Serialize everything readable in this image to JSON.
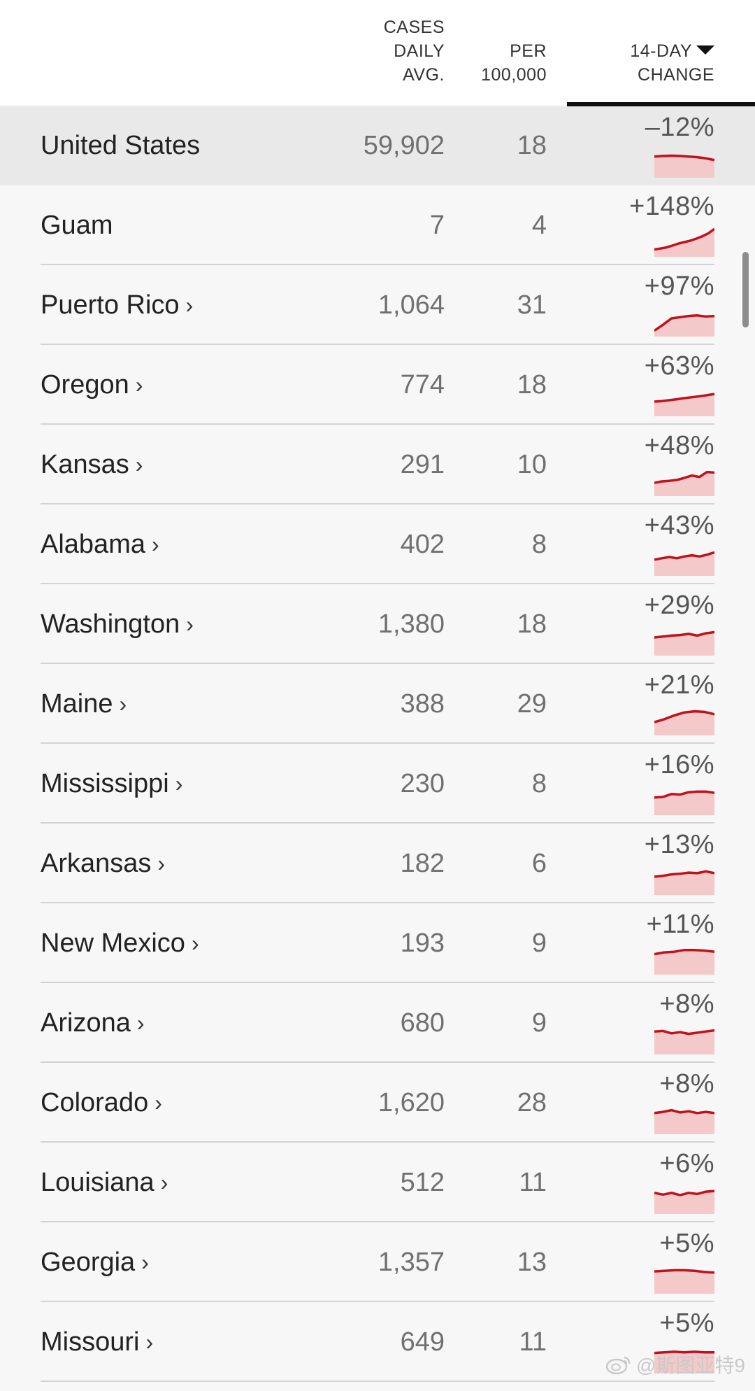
{
  "header": {
    "cases_line1": "CASES",
    "cases_line2": "DAILY",
    "cases_line3": "AVG.",
    "per_line1": "PER",
    "per_line2": "100,000",
    "change_line1": "14-DAY",
    "change_line2": "CHANGE",
    "sort_icon": "caret-down-icon"
  },
  "rows": [
    {
      "name": "United States",
      "link": false,
      "cases": "59,902",
      "per": "18",
      "change": "–12%",
      "trend": [
        0.72,
        0.74,
        0.75,
        0.74,
        0.72,
        0.7,
        0.66,
        0.6
      ]
    },
    {
      "name": "Guam",
      "link": false,
      "cases": "7",
      "per": "4",
      "change": "+148%",
      "trend": [
        0.25,
        0.28,
        0.32,
        0.38,
        0.45,
        0.5,
        0.55,
        0.62,
        0.7,
        0.8,
        0.95
      ]
    },
    {
      "name": "Puerto Rico",
      "link": true,
      "cases": "1,064",
      "per": "31",
      "change": "+97%",
      "trend": [
        0.2,
        0.4,
        0.62,
        0.66,
        0.7,
        0.72,
        0.68,
        0.7
      ]
    },
    {
      "name": "Oregon",
      "link": true,
      "cases": "774",
      "per": "18",
      "change": "+63%",
      "trend": [
        0.5,
        0.52,
        0.55,
        0.58,
        0.62,
        0.65,
        0.68,
        0.72,
        0.76
      ]
    },
    {
      "name": "Kansas",
      "link": true,
      "cases": "291",
      "per": "10",
      "change": "+48%",
      "trend": [
        0.45,
        0.5,
        0.52,
        0.55,
        0.62,
        0.7,
        0.65,
        0.82,
        0.8
      ]
    },
    {
      "name": "Alabama",
      "link": true,
      "cases": "402",
      "per": "8",
      "change": "+43%",
      "trend": [
        0.55,
        0.6,
        0.64,
        0.6,
        0.66,
        0.7,
        0.66,
        0.72,
        0.8
      ]
    },
    {
      "name": "Washington",
      "link": true,
      "cases": "1,380",
      "per": "18",
      "change": "+29%",
      "trend": [
        0.62,
        0.65,
        0.68,
        0.7,
        0.74,
        0.68,
        0.76,
        0.8
      ]
    },
    {
      "name": "Maine",
      "link": true,
      "cases": "388",
      "per": "29",
      "change": "+21%",
      "trend": [
        0.45,
        0.55,
        0.68,
        0.78,
        0.82,
        0.8,
        0.72
      ]
    },
    {
      "name": "Mississippi",
      "link": true,
      "cases": "230",
      "per": "8",
      "change": "+16%",
      "trend": [
        0.6,
        0.62,
        0.72,
        0.7,
        0.78,
        0.8,
        0.8,
        0.76
      ]
    },
    {
      "name": "Arkansas",
      "link": true,
      "cases": "182",
      "per": "6",
      "change": "+13%",
      "trend": [
        0.62,
        0.65,
        0.7,
        0.72,
        0.76,
        0.74,
        0.8,
        0.74
      ]
    },
    {
      "name": "New Mexico",
      "link": true,
      "cases": "193",
      "per": "9",
      "change": "+11%",
      "trend": [
        0.7,
        0.76,
        0.78,
        0.84,
        0.84,
        0.82,
        0.78
      ]
    },
    {
      "name": "Arizona",
      "link": true,
      "cases": "680",
      "per": "9",
      "change": "+8%",
      "trend": [
        0.78,
        0.8,
        0.72,
        0.76,
        0.7,
        0.74,
        0.78,
        0.82
      ]
    },
    {
      "name": "Colorado",
      "link": true,
      "cases": "1,620",
      "per": "28",
      "change": "+8%",
      "trend": [
        0.72,
        0.76,
        0.82,
        0.74,
        0.78,
        0.72,
        0.76,
        0.72
      ]
    },
    {
      "name": "Louisiana",
      "link": true,
      "cases": "512",
      "per": "11",
      "change": "+6%",
      "trend": [
        0.72,
        0.66,
        0.72,
        0.64,
        0.72,
        0.68,
        0.76,
        0.78
      ]
    },
    {
      "name": "Georgia",
      "link": true,
      "cases": "1,357",
      "per": "13",
      "change": "+5%",
      "trend": [
        0.76,
        0.78,
        0.8,
        0.8,
        0.78,
        0.74,
        0.72
      ]
    },
    {
      "name": "Missouri",
      "link": true,
      "cases": "649",
      "per": "11",
      "change": "+5%",
      "trend": [
        0.7,
        0.72,
        0.74,
        0.72,
        0.74,
        0.72,
        0.72
      ]
    }
  ],
  "link_glyph": "›",
  "colors": {
    "spark_line": "#c0121c",
    "spark_fill": "#f4c9c9",
    "row_highlight": "#e9e9e9"
  },
  "watermark": {
    "icon": "weibo-icon",
    "text": "@斯图亚特9"
  }
}
